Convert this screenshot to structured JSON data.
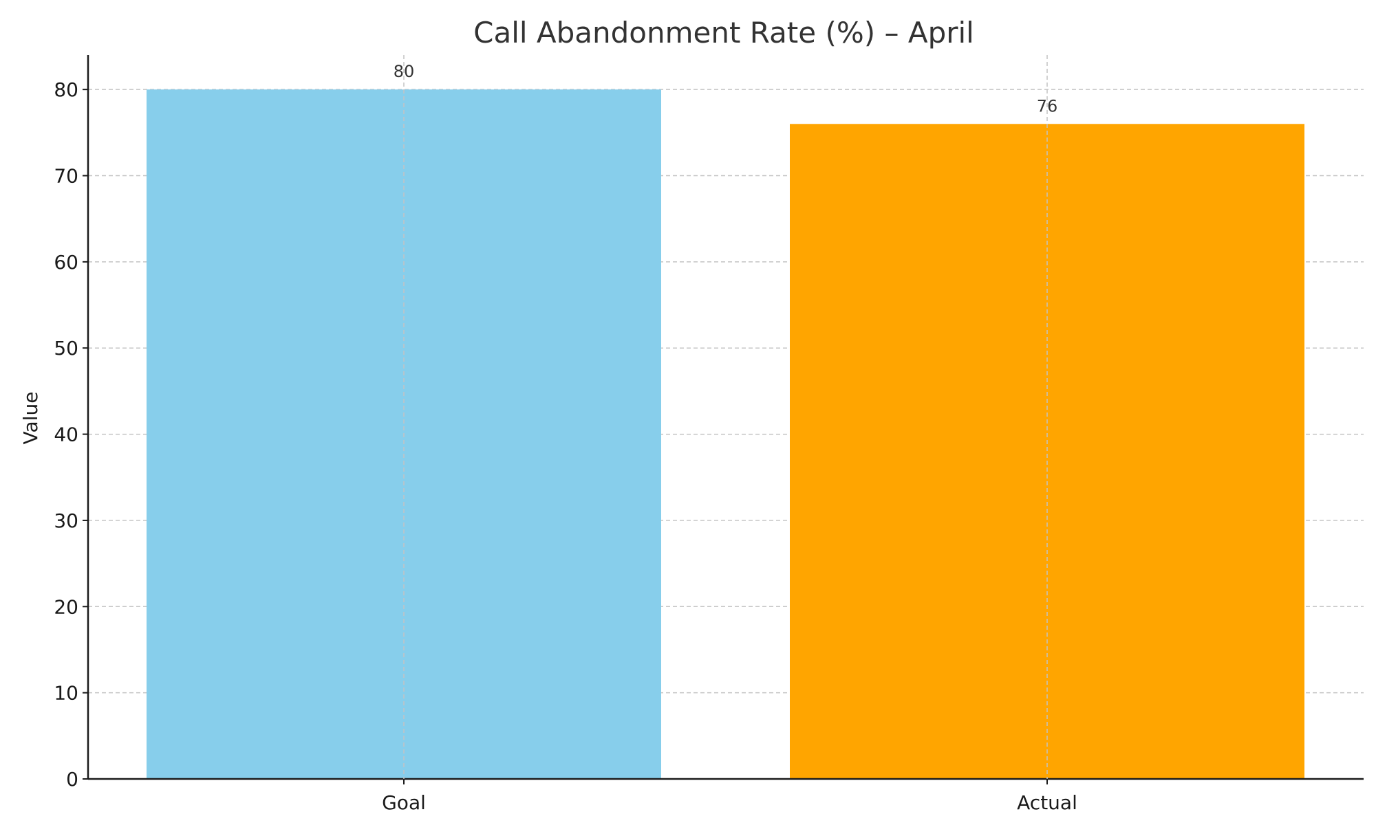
{
  "chart_data": {
    "type": "bar",
    "title": "Call Abandonment Rate (%) – April",
    "xlabel": "",
    "ylabel": "Value",
    "categories": [
      "Goal",
      "Actual"
    ],
    "values": [
      80,
      76
    ],
    "data_labels": [
      "80",
      "76"
    ],
    "bar_colors": [
      "#87CEEB",
      "#FFA500"
    ],
    "ylim": [
      0,
      84
    ],
    "yticks": [
      0,
      10,
      20,
      30,
      40,
      50,
      60,
      70,
      80
    ],
    "ytick_labels": [
      "0",
      "10",
      "20",
      "30",
      "40",
      "50",
      "60",
      "70",
      "80"
    ],
    "grid": true,
    "grid_style": "dashed",
    "legend": "none"
  }
}
